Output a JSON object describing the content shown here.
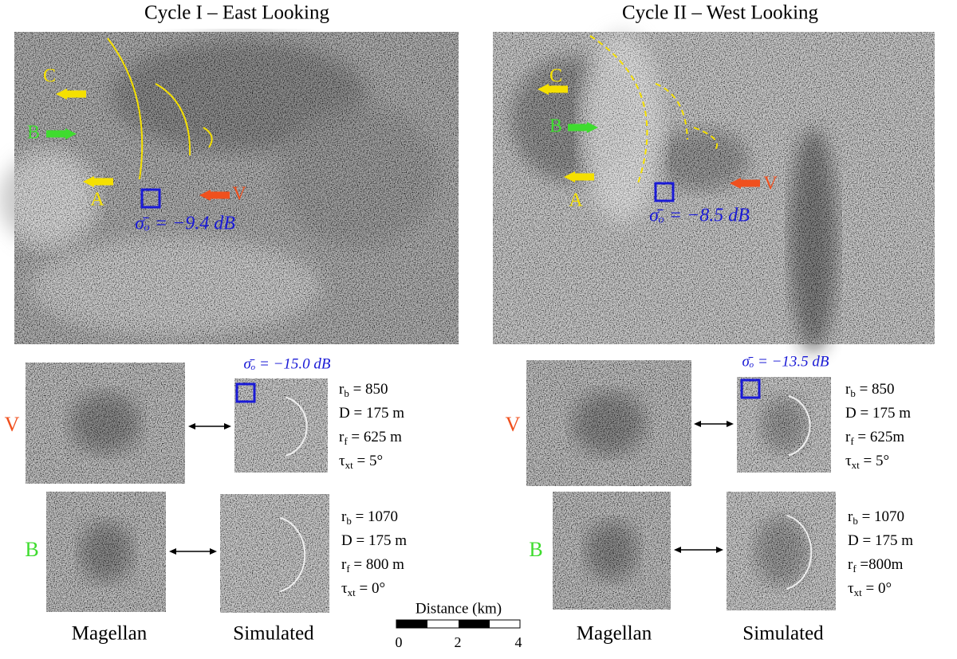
{
  "panels": [
    {
      "title": "Cycle I –  East Looking",
      "labels": {
        "c": "C",
        "b": "B",
        "a": "A",
        "v": "V"
      },
      "sigma_main": "σ̄ₒ = −9.4 dB",
      "sigma_sim": "σ̄ₒ = −15.0 dB",
      "rows": [
        {
          "label": "V",
          "params": [
            {
              "sym": "r",
              "sub": "b",
              "text": " = 850"
            },
            {
              "sym": "D",
              "text": " = 175 m"
            },
            {
              "sym": "r",
              "sub": "f",
              "text": " = 625 m"
            },
            {
              "sym": "τ",
              "sub": "xt",
              "text": " = 5°"
            }
          ]
        },
        {
          "label": "B",
          "params": [
            {
              "sym": "r",
              "sub": "b",
              "text": " = 1070"
            },
            {
              "sym": "D",
              "text": " = 175 m"
            },
            {
              "sym": "r",
              "sub": "f",
              "text": " = 800 m"
            },
            {
              "sym": "τ",
              "sub": "xt",
              "text": " = 0°"
            }
          ]
        }
      ],
      "captions": [
        "Magellan",
        "Simulated"
      ]
    },
    {
      "title": "Cycle II –  West Looking",
      "labels": {
        "c": "C",
        "b": "B",
        "a": "A",
        "v": "V"
      },
      "sigma_main": "σ̄ₒ = −8.5 dB",
      "sigma_sim": "σ̄ₒ = −13.5 dB",
      "rows": [
        {
          "label": "V",
          "params": [
            {
              "sym": "r",
              "sub": "b",
              "text": " = 850"
            },
            {
              "sym": "D",
              "text": " = 175 m"
            },
            {
              "sym": "r",
              "sub": "f",
              "text": " = 625m"
            },
            {
              "sym": "τ",
              "sub": "xt",
              "text": " = 5°"
            }
          ]
        },
        {
          "label": "B",
          "params": [
            {
              "sym": "r",
              "sub": "b",
              "text": " = 1070"
            },
            {
              "sym": "D",
              "text": " = 175 m"
            },
            {
              "sym": "r",
              "sub": "f",
              "text": " =800m"
            },
            {
              "sym": "τ",
              "sub": "xt",
              "text": " = 0°"
            }
          ]
        }
      ],
      "captions": [
        "Magellan",
        "Simulated"
      ]
    }
  ],
  "scale_bar": {
    "title": "Distance (km)",
    "ticks": [
      "0",
      "2",
      "4"
    ]
  }
}
